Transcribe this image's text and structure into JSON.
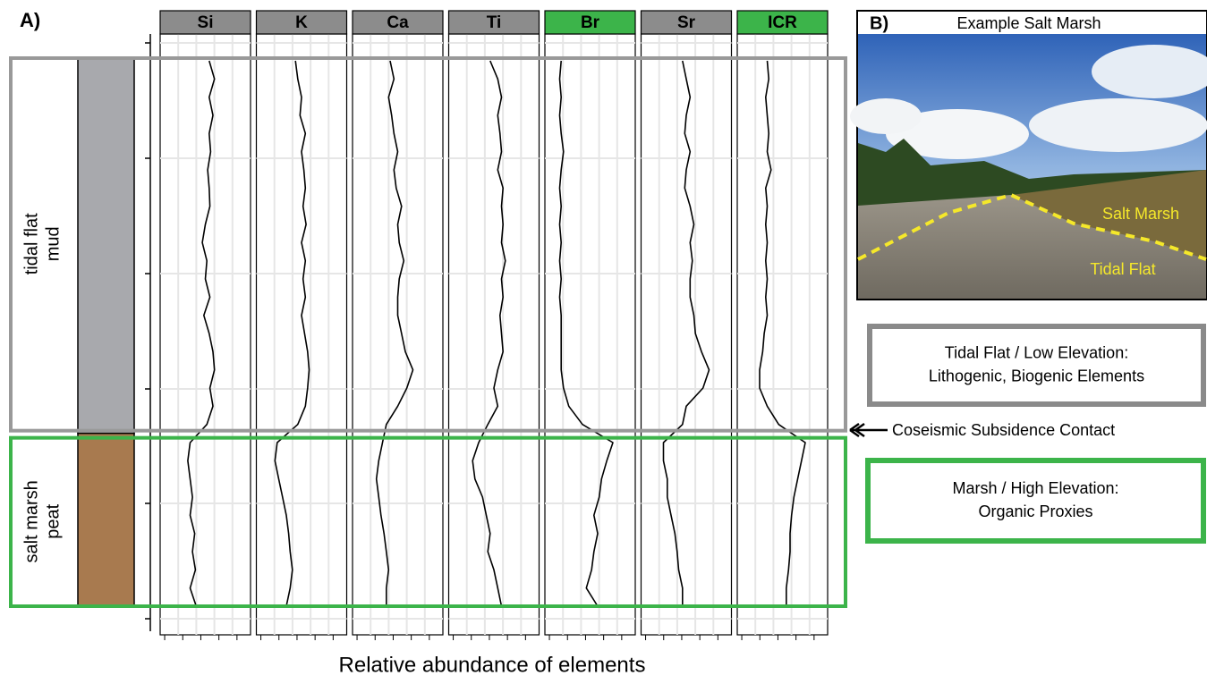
{
  "panel_a": {
    "label": "A)",
    "x_label": "Relative abundance of elements",
    "units": [
      {
        "lines": [
          "tidal flat",
          "mud"
        ],
        "fill": "#a8a9ad",
        "outline": "#999999"
      },
      {
        "lines": [
          "salt marsh",
          "peat"
        ],
        "fill": "#a87a4f",
        "outline": "#3cb44a"
      }
    ],
    "contact_index": 20,
    "elements": [
      {
        "name": "Si",
        "header_color": "#8c8c8c",
        "values": [
          0.55,
          0.62,
          0.55,
          0.6,
          0.55,
          0.57,
          0.53,
          0.55,
          0.56,
          0.5,
          0.46,
          0.52,
          0.5,
          0.56,
          0.48,
          0.55,
          0.6,
          0.62,
          0.56,
          0.6,
          0.52,
          0.3,
          0.27,
          0.3,
          0.33,
          0.3,
          0.36,
          0.33,
          0.37,
          0.3,
          0.38
        ]
      },
      {
        "name": "K",
        "header_color": "#8c8c8c",
        "values": [
          0.42,
          0.45,
          0.5,
          0.48,
          0.55,
          0.5,
          0.53,
          0.55,
          0.52,
          0.56,
          0.5,
          0.55,
          0.52,
          0.55,
          0.5,
          0.54,
          0.58,
          0.6,
          0.58,
          0.55,
          0.45,
          0.18,
          0.15,
          0.2,
          0.25,
          0.3,
          0.33,
          0.35,
          0.38,
          0.35,
          0.3
        ]
      },
      {
        "name": "Ca",
        "header_color": "#8c8c8c",
        "values": [
          0.4,
          0.45,
          0.38,
          0.42,
          0.45,
          0.5,
          0.45,
          0.48,
          0.55,
          0.5,
          0.52,
          0.58,
          0.52,
          0.5,
          0.5,
          0.55,
          0.6,
          0.7,
          0.62,
          0.5,
          0.35,
          0.3,
          0.25,
          0.22,
          0.25,
          0.28,
          0.32,
          0.35,
          0.38,
          0.35,
          0.35
        ]
      },
      {
        "name": "Ti",
        "header_color": "#8c8c8c",
        "values": [
          0.45,
          0.55,
          0.6,
          0.55,
          0.58,
          0.6,
          0.55,
          0.62,
          0.6,
          0.62,
          0.6,
          0.65,
          0.6,
          0.62,
          0.58,
          0.6,
          0.62,
          0.55,
          0.5,
          0.55,
          0.42,
          0.3,
          0.22,
          0.25,
          0.35,
          0.4,
          0.45,
          0.42,
          0.5,
          0.55,
          0.6
        ]
      },
      {
        "name": "Br",
        "header_color": "#3cb44a",
        "values": [
          0.12,
          0.1,
          0.12,
          0.1,
          0.12,
          0.15,
          0.12,
          0.1,
          0.12,
          0.1,
          0.12,
          0.1,
          0.12,
          0.1,
          0.12,
          0.12,
          0.12,
          0.12,
          0.15,
          0.22,
          0.4,
          0.8,
          0.72,
          0.65,
          0.62,
          0.55,
          0.6,
          0.55,
          0.52,
          0.45,
          0.6
        ]
      },
      {
        "name": "Sr",
        "header_color": "#8c8c8c",
        "values": [
          0.45,
          0.5,
          0.55,
          0.5,
          0.48,
          0.55,
          0.5,
          0.48,
          0.55,
          0.6,
          0.55,
          0.58,
          0.55,
          0.55,
          0.6,
          0.62,
          0.7,
          0.8,
          0.72,
          0.5,
          0.45,
          0.2,
          0.2,
          0.25,
          0.25,
          0.3,
          0.35,
          0.38,
          0.4,
          0.45,
          0.45
        ]
      },
      {
        "name": "ICR",
        "header_color": "#3cb44a",
        "values": [
          0.3,
          0.32,
          0.28,
          0.3,
          0.32,
          0.3,
          0.35,
          0.28,
          0.3,
          0.28,
          0.3,
          0.28,
          0.3,
          0.28,
          0.3,
          0.26,
          0.24,
          0.2,
          0.2,
          0.3,
          0.45,
          0.8,
          0.75,
          0.7,
          0.65,
          0.62,
          0.6,
          0.6,
          0.58,
          0.55,
          0.55
        ]
      }
    ]
  },
  "panel_b": {
    "label": "B)",
    "title": "Example Salt Marsh",
    "salt_marsh_label": "Salt Marsh",
    "tidal_flat_label": "Tidal Flat"
  },
  "contact_label": "Coseismic Subsidence Contact",
  "legend": [
    {
      "lines": [
        "Tidal Flat / Low Elevation:",
        "Lithogenic, Biogenic Elements"
      ],
      "color": "#8a8a8a"
    },
    {
      "lines": [
        "Marsh / High Elevation:",
        "Organic Proxies"
      ],
      "color": "#3cb44a"
    }
  ]
}
